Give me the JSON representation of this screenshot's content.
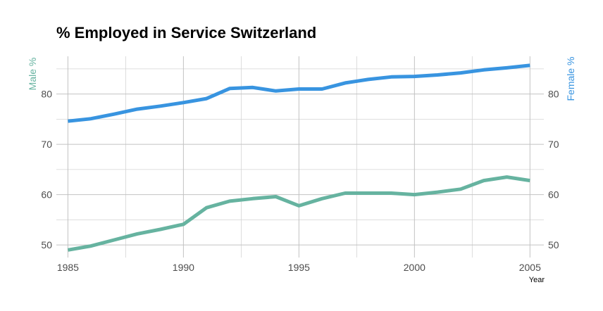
{
  "chart_data": {
    "type": "line",
    "title": "% Employed in Service Switzerland",
    "xlabel": "Year",
    "ylabel_left": "Male %",
    "ylabel_right": "Female %",
    "xlim": [
      1984.5,
      2005.6
    ],
    "ylim": [
      47.5,
      87.5
    ],
    "xticks": [
      1985,
      1990,
      1995,
      2000,
      2005
    ],
    "yticks": [
      50,
      60,
      70,
      80
    ],
    "grid": true,
    "x": [
      1985,
      1986,
      1987,
      1988,
      1989,
      1990,
      1991,
      1992,
      1993,
      1994,
      1995,
      1996,
      1997,
      1998,
      1999,
      2000,
      2001,
      2002,
      2003,
      2004,
      2005
    ],
    "series": [
      {
        "name": "Male %",
        "color": "#66b3a0",
        "values": [
          49.0,
          49.8,
          51.0,
          52.2,
          53.1,
          54.1,
          57.4,
          58.7,
          59.2,
          59.6,
          57.8,
          59.2,
          60.3,
          60.3,
          60.3,
          60.0,
          60.5,
          61.1,
          62.8,
          63.5,
          62.8
        ]
      },
      {
        "name": "Female %",
        "color": "#3894e0",
        "values": [
          74.6,
          75.1,
          76.0,
          77.0,
          77.6,
          78.3,
          79.1,
          81.1,
          81.3,
          80.6,
          81.0,
          81.0,
          82.2,
          82.9,
          83.4,
          83.5,
          83.8,
          84.2,
          84.8,
          85.2,
          85.7
        ]
      }
    ]
  }
}
